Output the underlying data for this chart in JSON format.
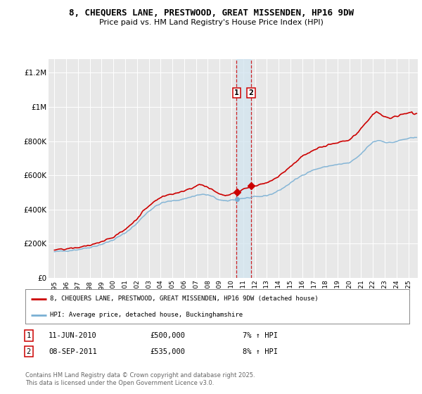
{
  "title": "8, CHEQUERS LANE, PRESTWOOD, GREAT MISSENDEN, HP16 9DW",
  "subtitle": "Price paid vs. HM Land Registry's House Price Index (HPI)",
  "ylabel_ticks": [
    "£0",
    "£200K",
    "£400K",
    "£600K",
    "£800K",
    "£1M",
    "£1.2M"
  ],
  "ylabel_values": [
    0,
    200000,
    400000,
    600000,
    800000,
    1000000,
    1200000
  ],
  "ylim": [
    0,
    1280000
  ],
  "xlim_start": 1994.5,
  "xlim_end": 2025.8,
  "line1_color": "#cc0000",
  "line2_color": "#7ab0d4",
  "shade_color": "#d0e4f0",
  "marker1_date": 2010.44,
  "marker2_date": 2011.67,
  "marker1_label": "11-JUN-2010",
  "marker1_price_label": "£500,000",
  "marker1_hpi_label": "7% ↑ HPI",
  "marker2_label": "08-SEP-2011",
  "marker2_price_label": "£535,000",
  "marker2_hpi_label": "8% ↑ HPI",
  "legend_line1": "8, CHEQUERS LANE, PRESTWOOD, GREAT MISSENDEN, HP16 9DW (detached house)",
  "legend_line2": "HPI: Average price, detached house, Buckinghamshire",
  "footer": "Contains HM Land Registry data © Crown copyright and database right 2025.\nThis data is licensed under the Open Government Licence v3.0.",
  "background_color": "#e8e8e8",
  "grid_color": "#ffffff"
}
